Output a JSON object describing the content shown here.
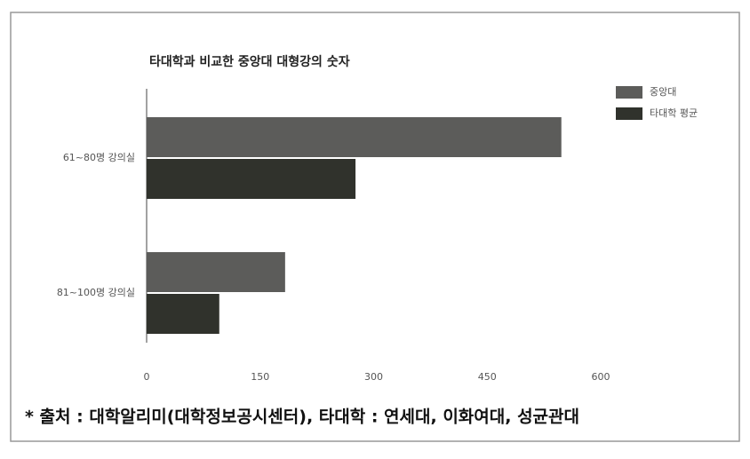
{
  "chart_data": {
    "type": "bar",
    "orientation": "horizontal",
    "title": "타대학과 비교한 중앙대 대형강의 숫자",
    "categories": [
      "61~80명 강의실",
      "81~100명 강의실"
    ],
    "series": [
      {
        "name": "중앙대",
        "color": "#5c5c5a",
        "values": [
          548,
          183
        ]
      },
      {
        "name": "타대학 평균",
        "color": "#30322c",
        "values": [
          276,
          96
        ]
      }
    ],
    "xlim": [
      0,
      600
    ],
    "xticks": [
      0,
      150,
      300,
      450,
      600
    ],
    "grid": false,
    "legend": "top-right",
    "annotation": "* 출처 : 대학알리미(대학정보공시센터), 타대학 : 연세대, 이화여대, 성균관대"
  }
}
